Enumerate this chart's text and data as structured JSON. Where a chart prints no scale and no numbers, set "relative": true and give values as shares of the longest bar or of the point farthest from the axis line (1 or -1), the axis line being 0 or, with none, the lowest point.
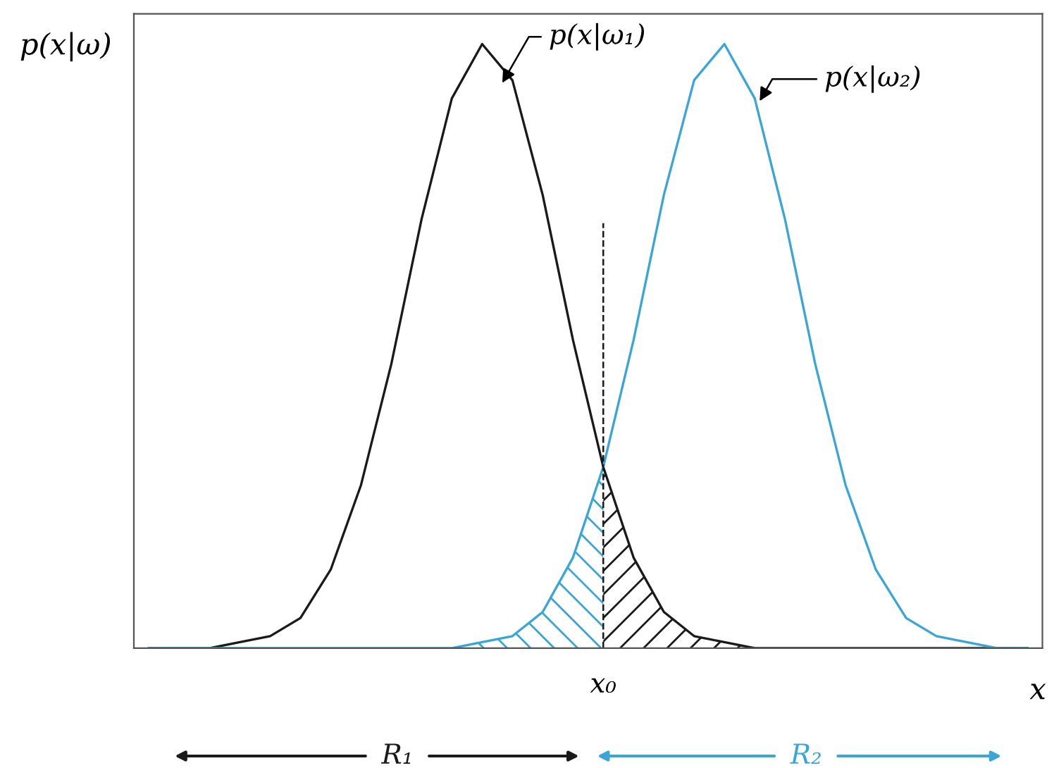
{
  "chart_data": {
    "type": "line",
    "relative": true,
    "xlabel": "x",
    "ylabel": "p(x|ω)",
    "categories": [
      null,
      null,
      null,
      null,
      null,
      null,
      null,
      null,
      null,
      null,
      null,
      null,
      null,
      null,
      null,
      null,
      null,
      null,
      null,
      null,
      null,
      null,
      null,
      null,
      null,
      null,
      null,
      null,
      null,
      null
    ],
    "series": [
      {
        "color": "#1a1a1a",
        "values": [
          0,
          0,
          0,
          0.01,
          0.02,
          0.05,
          0.13,
          0.27,
          0.47,
          0.71,
          0.91,
          1,
          0.94,
          0.75,
          0.51,
          0.3,
          0.15,
          0.06,
          0.02,
          0.01,
          0,
          0,
          0,
          0,
          0,
          0,
          0,
          0,
          0,
          0
        ]
      },
      {
        "color": "#3aa6d8",
        "values": [
          0,
          0,
          0,
          0,
          0,
          0,
          0,
          0,
          0,
          0,
          0,
          0.01,
          0.02,
          0.06,
          0.15,
          0.3,
          0.51,
          0.75,
          0.94,
          1,
          0.91,
          0.71,
          0.47,
          0.27,
          0.13,
          0.05,
          0.02,
          0.01,
          0,
          0
        ]
      },
      {
        "type": "area",
        "color": "#1a1a1a",
        "values": [
          null,
          null,
          null,
          null,
          null,
          null,
          null,
          null,
          null,
          null,
          null,
          null,
          null,
          null,
          null,
          0.3,
          0.15,
          0.06,
          0.02,
          0.01,
          0,
          null,
          null,
          null,
          null,
          null,
          null,
          null,
          null,
          null
        ]
      },
      {
        "type": "area",
        "color": "#3aa6d8",
        "values": [
          null,
          null,
          null,
          null,
          null,
          null,
          null,
          null,
          null,
          null,
          0,
          0.01,
          0.02,
          0.06,
          0.15,
          0.3,
          null,
          null,
          null,
          null,
          null,
          null,
          null,
          null,
          null,
          null,
          null,
          null,
          null,
          null
        ]
      }
    ],
    "ref_lines": [
      {
        "axis": "x",
        "value": "x₀",
        "color": "#1a1a1a",
        "line_style": "dashed"
      }
    ],
    "annotations": [
      "p(x|ω₁)",
      "p(x|ω₂)",
      "R₁",
      "R₂"
    ],
    "legend": false,
    "marker": "none",
    "line_style": "solid"
  }
}
